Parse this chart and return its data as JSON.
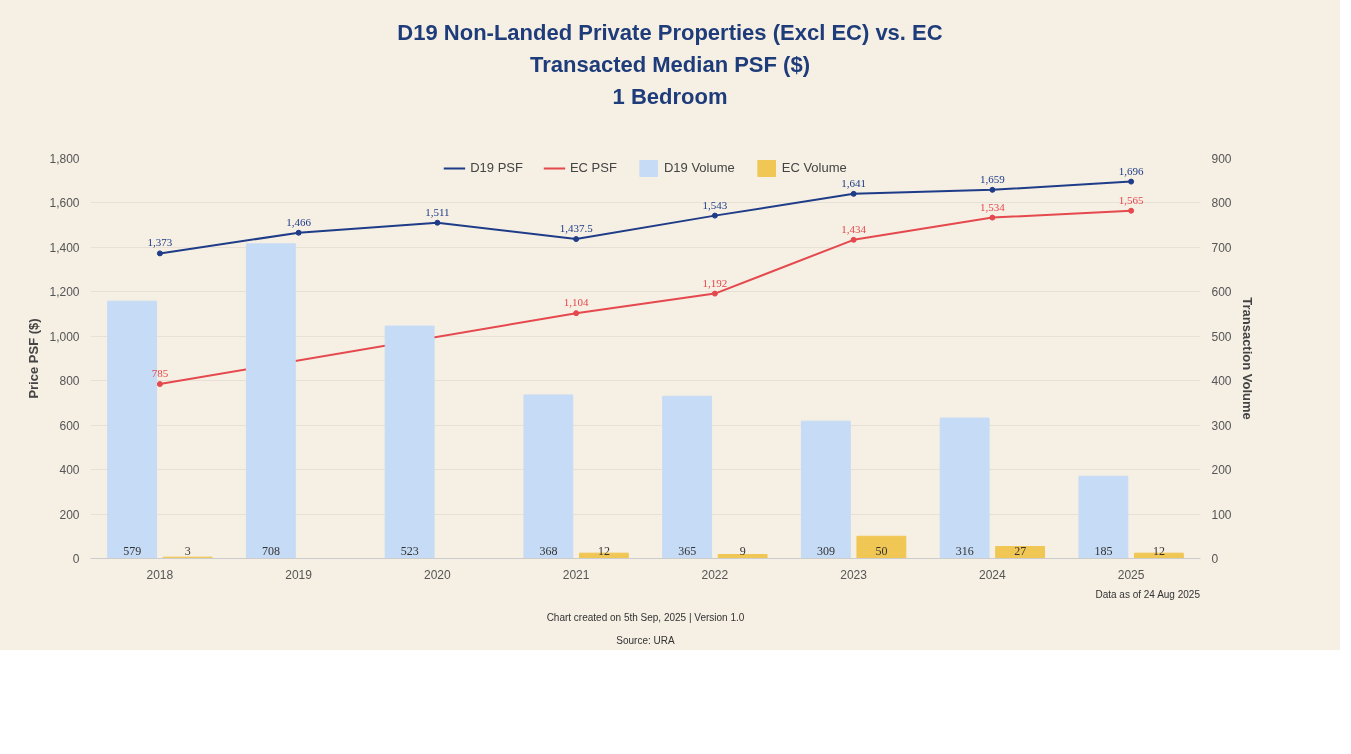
{
  "chart_data": {
    "type": "bar",
    "title": "D19 Non-Landed Private Properties (Excl EC) vs. EC\nTransacted Median PSF ($)\n1 Bedroom",
    "ylabel": "Price PSF ($)",
    "y2label": "Transaction Volume",
    "categories": [
      "2018",
      "2019",
      "2020",
      "2021",
      "2022",
      "2023",
      "2024",
      "2025"
    ],
    "series": [
      {
        "name": "D19 PSF",
        "type": "line",
        "color": "#1f3c88",
        "values": [
          1373,
          1466,
          1511,
          1437.5,
          1543,
          1641,
          1659,
          1696
        ],
        "value_labels": [
          "1,373",
          "1,466",
          "1,511",
          "1,437.5",
          "1,543",
          "1,641",
          "1,659",
          "1,696"
        ]
      },
      {
        "name": "EC PSF",
        "type": "line",
        "color": "#e5484d",
        "values": [
          785,
          null,
          null,
          1104,
          1192,
          1434,
          1534,
          1565
        ],
        "value_labels": [
          "785",
          null,
          null,
          "1,104",
          "1,192",
          "1,434",
          "1,534",
          "1,565"
        ]
      },
      {
        "name": "D19 Volume",
        "axis": "y2",
        "color": "#c6dbf5",
        "values": [
          579,
          708,
          523,
          368,
          365,
          309,
          316,
          185
        ],
        "value_labels": [
          "579",
          "708",
          "523",
          "368",
          "365",
          "309",
          "316",
          "185"
        ]
      },
      {
        "name": "EC Volume",
        "axis": "y2",
        "color": "#f0c654",
        "values": [
          3,
          null,
          null,
          12,
          9,
          50,
          27,
          12
        ],
        "value_labels": [
          "3",
          null,
          null,
          "12",
          "9",
          "50",
          "27",
          "12"
        ]
      }
    ],
    "ylim": [
      0,
      1800
    ],
    "yticks": [
      {
        "value": 0,
        "label": "0"
      },
      {
        "value": 200,
        "label": "200"
      },
      {
        "value": 400,
        "label": "400"
      },
      {
        "value": 600,
        "label": "600"
      },
      {
        "value": 800,
        "label": "800"
      },
      {
        "value": 1000,
        "label": "1,000"
      },
      {
        "value": 1200,
        "label": "1,200"
      },
      {
        "value": 1400,
        "label": "1,400"
      },
      {
        "value": 1600,
        "label": "1,600"
      },
      {
        "value": 1800,
        "label": "1,800"
      }
    ],
    "y2lim": [
      0,
      900
    ],
    "y2ticks": [
      0,
      100,
      200,
      300,
      400,
      500,
      600,
      700,
      800,
      900
    ],
    "grid": "y",
    "legend": "top",
    "marker": "circle",
    "line_style": "solid",
    "annotations": [
      "Data as of 24 Aug 2025",
      "Chart created on 5th Sep, 2025 | Version 1.0",
      "Source: URA"
    ]
  }
}
